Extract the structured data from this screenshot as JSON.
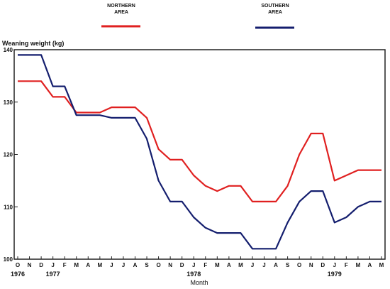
{
  "chart_data": {
    "type": "line",
    "title": "",
    "ylabel": "Weaning weight (kg)",
    "xlabel": "Month",
    "ylim": [
      100,
      140
    ],
    "yticks": [
      100,
      110,
      120,
      130,
      140
    ],
    "grid": false,
    "legend_position": "top",
    "month_labels": [
      "O",
      "N",
      "D",
      "J",
      "F",
      "M",
      "A",
      "M",
      "J",
      "J",
      "A",
      "S",
      "O",
      "N",
      "D",
      "J",
      "F",
      "M",
      "A",
      "M",
      "J",
      "J",
      "A",
      "S",
      "O",
      "N",
      "D",
      "J",
      "F",
      "M",
      "A",
      "M"
    ],
    "year_labels": [
      {
        "text": "1976",
        "month_index": 0
      },
      {
        "text": "1977",
        "month_index": 3
      },
      {
        "text": "1978",
        "month_index": 15
      },
      {
        "text": "1979",
        "month_index": 27
      }
    ],
    "series": [
      {
        "name": "NORTHERN AREA",
        "color": "#e02020",
        "values": [
          134,
          134,
          134,
          131,
          131,
          128,
          128,
          128,
          129,
          129,
          129,
          127,
          121,
          119,
          119,
          116,
          114,
          113,
          114,
          114,
          111,
          111,
          111,
          114,
          120,
          124,
          124,
          115,
          116,
          117,
          117,
          117
        ]
      },
      {
        "name": "SOUTHERN AREA",
        "color": "#141e6e",
        "values": [
          139,
          139,
          139,
          133,
          133,
          127.5,
          127.5,
          127.5,
          127,
          127,
          127,
          123,
          115,
          111,
          111,
          108,
          106,
          105,
          105,
          105,
          102,
          102,
          102,
          107,
          111,
          113,
          113,
          107,
          108,
          110,
          111,
          111
        ]
      }
    ]
  },
  "legend": {
    "northern_line1": "NORTHERN",
    "northern_line2": "AREA",
    "southern_line1": "SOUTHERN",
    "southern_line2": "AREA"
  }
}
